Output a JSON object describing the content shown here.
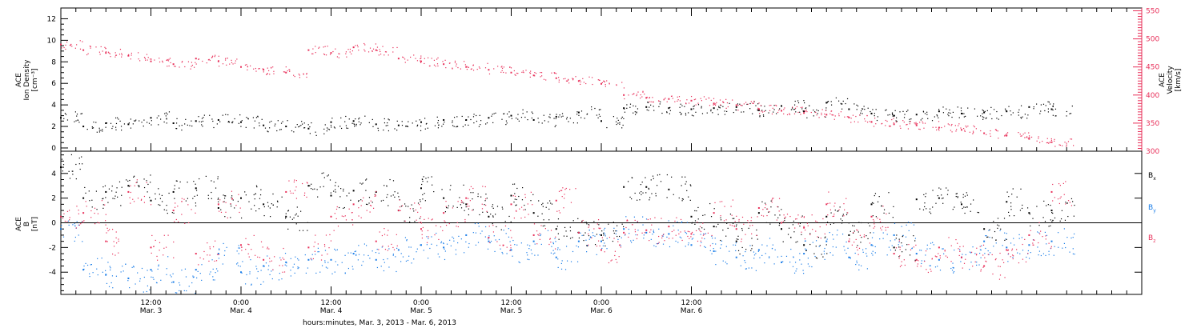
{
  "chart_data": [
    {
      "type": "scatter",
      "panel": "top",
      "ylabel_left": [
        "ACE",
        "Ion Density",
        "[cm⁻³]"
      ],
      "ylabel_right": [
        "ACE",
        "Velocity",
        "[km/s]"
      ],
      "ylim_left": [
        -0.3,
        13
      ],
      "yticks_left": [
        0,
        2,
        4,
        6,
        8,
        10,
        12
      ],
      "ylim_right": [
        300,
        555
      ],
      "yticks_right": [
        300,
        350,
        400,
        450,
        500,
        550
      ],
      "right_axis_color": "#e8305a",
      "series": [
        {
          "axis": "left",
          "color": "#000000",
          "points": [
            [
              0,
              2.8
            ],
            [
              3,
              2.0
            ],
            [
              6,
              2.3
            ],
            [
              9,
              2.2
            ],
            [
              12,
              2.8
            ],
            [
              15,
              2.3
            ],
            [
              18,
              2.5
            ],
            [
              21,
              2.6
            ],
            [
              24,
              2.4
            ],
            [
              27,
              2.1
            ],
            [
              30,
              2.0
            ],
            [
              33,
              1.8
            ],
            [
              36,
              2.4
            ],
            [
              39,
              2.5
            ],
            [
              42,
              2.2
            ],
            [
              45,
              2.1
            ],
            [
              48,
              2.4
            ],
            [
              51,
              2.6
            ],
            [
              54,
              2.6
            ],
            [
              57,
              2.8
            ],
            [
              60,
              3.0
            ],
            [
              63,
              2.6
            ],
            [
              66,
              2.9
            ],
            [
              69,
              3.3
            ],
            [
              72,
              2.5
            ],
            [
              75,
              3.7
            ],
            [
              78,
              3.8
            ],
            [
              81,
              3.7
            ],
            [
              84,
              3.6
            ],
            [
              87,
              3.7
            ],
            [
              90,
              3.8
            ],
            [
              93,
              3.5
            ],
            [
              96,
              3.9
            ],
            [
              99,
              3.4
            ],
            [
              102,
              4.2
            ],
            [
              105,
              3.6
            ],
            [
              108,
              3.2
            ],
            [
              111,
              3.0
            ],
            [
              114,
              3.1
            ],
            [
              117,
              3.4
            ],
            [
              120,
              3.2
            ],
            [
              123,
              3.3
            ],
            [
              126,
              3.4
            ],
            [
              129,
              3.8
            ],
            [
              132,
              3.6
            ]
          ]
        },
        {
          "axis": "right",
          "color": "#e8305a",
          "points": [
            [
              0,
              490
            ],
            [
              3,
              480
            ],
            [
              6,
              475
            ],
            [
              9,
              470
            ],
            [
              12,
              460
            ],
            [
              15,
              455
            ],
            [
              18,
              465
            ],
            [
              21,
              460
            ],
            [
              24,
              450
            ],
            [
              27,
              445
            ],
            [
              30,
              440
            ],
            [
              33,
              480
            ],
            [
              36,
              475
            ],
            [
              39,
              485
            ],
            [
              42,
              480
            ],
            [
              45,
              465
            ],
            [
              48,
              460
            ],
            [
              51,
              455
            ],
            [
              54,
              450
            ],
            [
              57,
              445
            ],
            [
              60,
              440
            ],
            [
              63,
              435
            ],
            [
              66,
              430
            ],
            [
              69,
              425
            ],
            [
              72,
              420
            ],
            [
              75,
              400
            ],
            [
              78,
              395
            ],
            [
              81,
              393
            ],
            [
              84,
              390
            ],
            [
              87,
              385
            ],
            [
              90,
              382
            ],
            [
              93,
              375
            ],
            [
              96,
              372
            ],
            [
              99,
              368
            ],
            [
              102,
              365
            ],
            [
              105,
              360
            ],
            [
              108,
              352
            ],
            [
              111,
              348
            ],
            [
              114,
              346
            ],
            [
              117,
              342
            ],
            [
              120,
              338
            ],
            [
              123,
              332
            ],
            [
              126,
              328
            ],
            [
              129,
              322
            ],
            [
              132,
              316
            ]
          ]
        }
      ]
    },
    {
      "type": "scatter",
      "panel": "bottom",
      "ylabel": [
        "ACE",
        "B",
        "[nT]"
      ],
      "ylim": [
        -5.8,
        5.8
      ],
      "yticks": [
        -4,
        -2,
        0,
        2,
        4
      ],
      "series": [
        {
          "name": "Bx",
          "color": "#000000",
          "points": [
            [
              0,
              4.5
            ],
            [
              3,
              2.0
            ],
            [
              6,
              2.5
            ],
            [
              9,
              3.0
            ],
            [
              12,
              1.8
            ],
            [
              15,
              2.5
            ],
            [
              18,
              2.8
            ],
            [
              21,
              1.2
            ],
            [
              24,
              2.0
            ],
            [
              27,
              1.5
            ],
            [
              30,
              0.5
            ],
            [
              33,
              3.0
            ],
            [
              36,
              2.2
            ],
            [
              39,
              2.6
            ],
            [
              42,
              2.5
            ],
            [
              45,
              1.0
            ],
            [
              48,
              2.8
            ],
            [
              51,
              2.0
            ],
            [
              54,
              1.5
            ],
            [
              57,
              0.5
            ],
            [
              60,
              2.2
            ],
            [
              63,
              0.8
            ],
            [
              66,
              -0.5
            ],
            [
              69,
              -0.8
            ],
            [
              72,
              -1.0
            ],
            [
              75,
              2.9
            ],
            [
              78,
              2.9
            ],
            [
              81,
              2.7
            ],
            [
              84,
              0.5
            ],
            [
              87,
              -0.3
            ],
            [
              90,
              -1.5
            ],
            [
              93,
              0.8
            ],
            [
              96,
              -0.5
            ],
            [
              99,
              -1.8
            ],
            [
              102,
              0.5
            ],
            [
              105,
              -1.0
            ],
            [
              108,
              1.5
            ],
            [
              111,
              -2.0
            ],
            [
              114,
              1.9
            ],
            [
              117,
              2.0
            ],
            [
              120,
              1.5
            ],
            [
              123,
              -0.5
            ],
            [
              126,
              1.7
            ],
            [
              129,
              0.8
            ],
            [
              132,
              1.0
            ]
          ]
        },
        {
          "name": "By",
          "color": "#1a7de8",
          "points": [
            [
              0,
              -0.5
            ],
            [
              3,
              -3.8
            ],
            [
              6,
              -4.2
            ],
            [
              9,
              -4.5
            ],
            [
              12,
              -3.8
            ],
            [
              15,
              -4.8
            ],
            [
              18,
              -3.8
            ],
            [
              21,
              -2.5
            ],
            [
              24,
              -4.0
            ],
            [
              27,
              -3.5
            ],
            [
              30,
              -3.2
            ],
            [
              33,
              -3.0
            ],
            [
              36,
              -3.0
            ],
            [
              39,
              -2.5
            ],
            [
              42,
              -3.0
            ],
            [
              45,
              -2.2
            ],
            [
              48,
              -1.8
            ],
            [
              51,
              -2.0
            ],
            [
              54,
              -1.0
            ],
            [
              57,
              -1.5
            ],
            [
              60,
              -2.2
            ],
            [
              63,
              -1.5
            ],
            [
              66,
              -2.8
            ],
            [
              69,
              -1.5
            ],
            [
              72,
              -1.5
            ],
            [
              75,
              -0.5
            ],
            [
              78,
              -0.8
            ],
            [
              81,
              -0.9
            ],
            [
              84,
              -1.8
            ],
            [
              87,
              -2.3
            ],
            [
              90,
              -2.8
            ],
            [
              93,
              -2.2
            ],
            [
              96,
              -3.2
            ],
            [
              99,
              -2.5
            ],
            [
              102,
              -1.5
            ],
            [
              105,
              -2.8
            ],
            [
              108,
              -1.8
            ],
            [
              111,
              -1.0
            ],
            [
              114,
              -2.5
            ],
            [
              117,
              -3.0
            ],
            [
              120,
              -2.8
            ],
            [
              123,
              -1.5
            ],
            [
              126,
              -2.0
            ],
            [
              129,
              -1.8
            ],
            [
              132,
              -1.5
            ]
          ]
        },
        {
          "name": "Bz",
          "color": "#e8305a",
          "points": [
            [
              0,
              0.5
            ],
            [
              3,
              0.8
            ],
            [
              6,
              -1.5
            ],
            [
              9,
              2.5
            ],
            [
              12,
              -2.0
            ],
            [
              15,
              1.0
            ],
            [
              18,
              -2.5
            ],
            [
              21,
              1.5
            ],
            [
              24,
              -1.8
            ],
            [
              27,
              -3.0
            ],
            [
              30,
              2.5
            ],
            [
              33,
              -2.0
            ],
            [
              36,
              0.5
            ],
            [
              39,
              1.5
            ],
            [
              42,
              -1.5
            ],
            [
              45,
              1.0
            ],
            [
              48,
              -0.5
            ],
            [
              51,
              0.8
            ],
            [
              54,
              2.0
            ],
            [
              57,
              -1.2
            ],
            [
              60,
              1.5
            ],
            [
              63,
              -1.0
            ],
            [
              66,
              1.8
            ],
            [
              69,
              -0.8
            ],
            [
              72,
              -2.2
            ],
            [
              75,
              -0.8
            ],
            [
              78,
              -0.6
            ],
            [
              81,
              -0.3
            ],
            [
              84,
              -0.9
            ],
            [
              87,
              0.8
            ],
            [
              90,
              -0.5
            ],
            [
              93,
              1.2
            ],
            [
              96,
              0.0
            ],
            [
              99,
              -0.4
            ],
            [
              102,
              1.5
            ],
            [
              105,
              -1.5
            ],
            [
              108,
              0.5
            ],
            [
              111,
              -2.5
            ],
            [
              114,
              -3.0
            ],
            [
              117,
              -2.0
            ],
            [
              120,
              -2.8
            ],
            [
              123,
              -3.5
            ],
            [
              126,
              -2.2
            ],
            [
              129,
              -1.0
            ],
            [
              132,
              2.5
            ]
          ]
        }
      ],
      "legend": [
        {
          "label": "B",
          "sub": "x",
          "color": "#000000"
        },
        {
          "label": "B",
          "sub": "y",
          "color": "#1a7de8"
        },
        {
          "label": "B",
          "sub": "z",
          "color": "#e8305a"
        }
      ]
    }
  ],
  "xaxis": {
    "xlim_hours": [
      0,
      144
    ],
    "ticks": [
      {
        "h": 12,
        "time": "12:00",
        "date": "Mar. 3"
      },
      {
        "h": 24,
        "time": "0:00",
        "date": "Mar. 4"
      },
      {
        "h": 36,
        "time": "12:00",
        "date": "Mar. 4"
      },
      {
        "h": 48,
        "time": "0:00",
        "date": "Mar. 5"
      },
      {
        "h": 60,
        "time": "12:00",
        "date": "Mar. 5"
      },
      {
        "h": 72,
        "time": "0:00",
        "date": "Mar. 6"
      },
      {
        "h": 84,
        "time": "12:00",
        "date": "Mar. 6"
      }
    ],
    "title": "hours:minutes, Mar.  3, 2013 - Mar.  6, 2013"
  }
}
